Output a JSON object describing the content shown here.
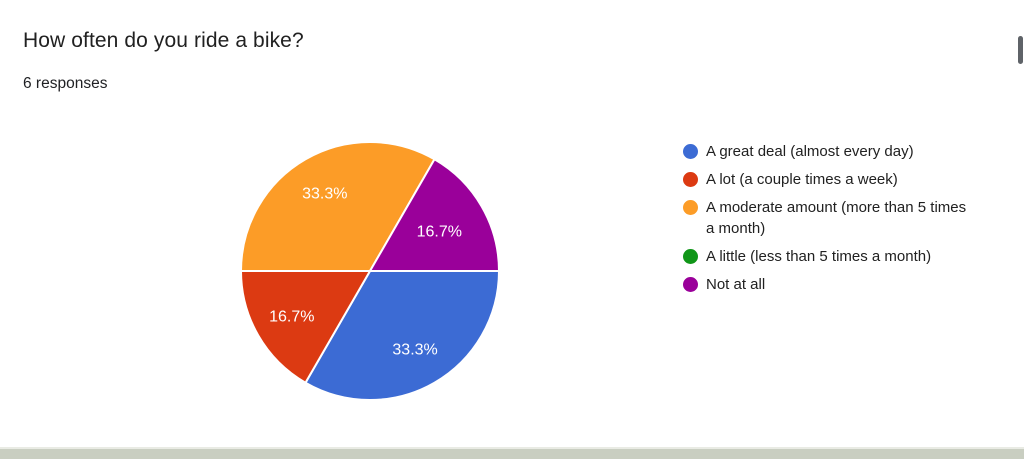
{
  "header": {
    "title": "How often do you ride a bike?",
    "responses_label": "6 responses"
  },
  "chart_data": {
    "type": "pie",
    "title": "How often do you ride a bike?",
    "total_responses": 6,
    "start_angle_deg": 90,
    "direction": "clockwise",
    "legend_position": "right",
    "labels": [
      "A great deal (almost every day)",
      "A lot (a couple times a week)",
      "A moderate amount (more than 5 times a month)",
      "A little (less than 5 times a month)",
      "Not at all"
    ],
    "values": [
      2,
      1,
      2,
      0,
      1
    ],
    "percents": [
      33.3,
      16.7,
      33.3,
      0,
      16.7
    ],
    "percent_labels": [
      "33.3%",
      "16.7%",
      "33.3%",
      "",
      "16.7%"
    ],
    "colors": [
      "#3c6bd4",
      "#dc3a12",
      "#fc9c27",
      "#109618",
      "#9a009a"
    ],
    "label_radius_factors": [
      0.7,
      0.7,
      0.7,
      0,
      0.62
    ]
  },
  "legend": {
    "items": [
      {
        "label": "A great deal (almost every day)",
        "lines": [
          "A great deal (almost every day)"
        ],
        "color": "#3c6bd4"
      },
      {
        "label": "A lot (a couple times a week)",
        "lines": [
          "A lot (a couple times a week)"
        ],
        "color": "#dc3a12"
      },
      {
        "label": "A moderate amount (more than 5 times a month)",
        "lines": [
          "A moderate amount (more than 5 times",
          "a month)"
        ],
        "color": "#fc9c27"
      },
      {
        "label": "A little (less than 5 times a month)",
        "lines": [
          "A little (less than 5 times a month)"
        ],
        "color": "#109618"
      },
      {
        "label": "Not at all",
        "lines": [
          "Not at all"
        ],
        "color": "#9a009a"
      }
    ]
  },
  "ui": {
    "background_color": "#ffffff",
    "footer_bar_color": "#c9cec1",
    "slice_label_color": "#ffffff",
    "text_color": "#212121"
  }
}
